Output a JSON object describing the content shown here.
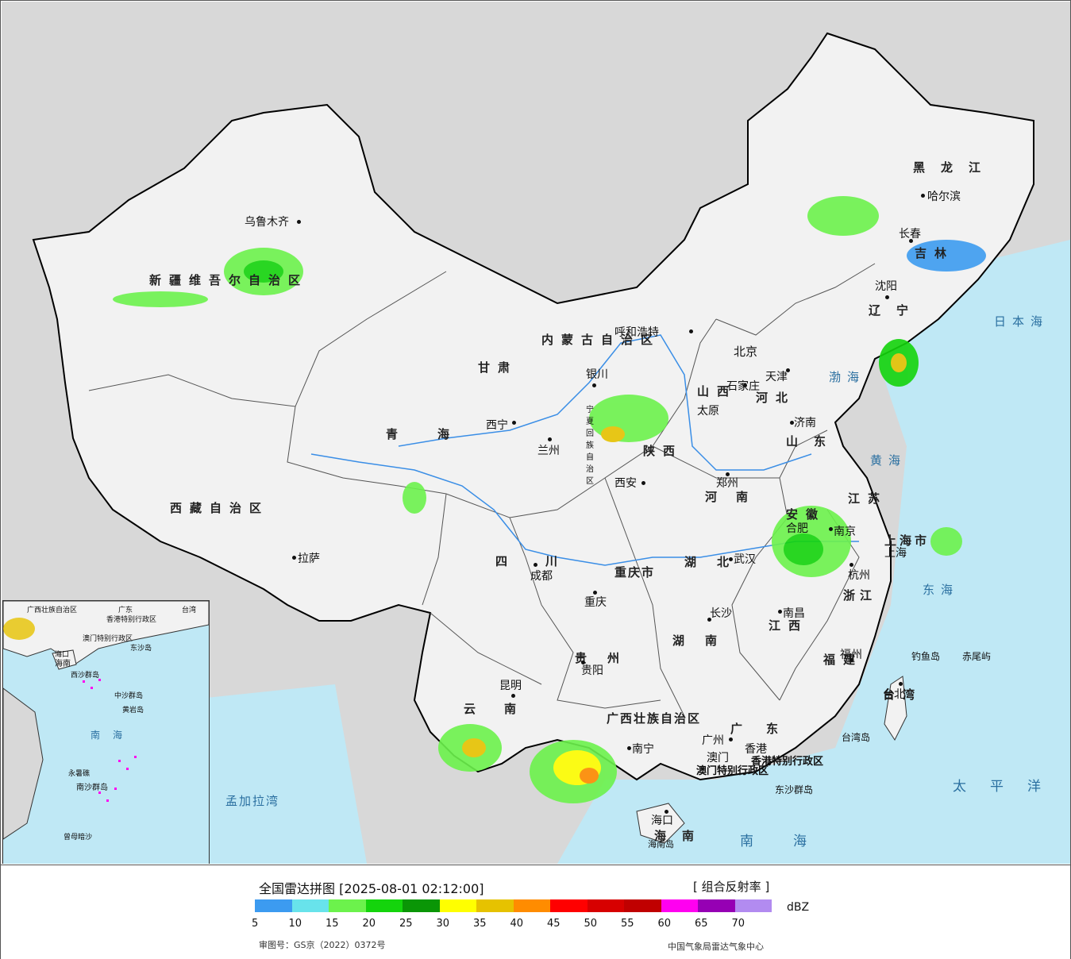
{
  "legend": {
    "title": "全国雷达拼图 [2025-08-01 02:12:00]",
    "product": "[ 组合反射率 ]",
    "unit": "dBZ",
    "ticks": [
      "5",
      "10",
      "15",
      "20",
      "25",
      "30",
      "35",
      "40",
      "45",
      "50",
      "55",
      "60",
      "65",
      "70"
    ],
    "colors": [
      "#3c9bf0",
      "#68e3eb",
      "#6cf24c",
      "#14d40c",
      "#0a9606",
      "#ffff00",
      "#e6c200",
      "#ff8c00",
      "#ff0000",
      "#d70000",
      "#c00000",
      "#ff00f0",
      "#9600b4",
      "#b28bf0"
    ],
    "credit_left": "审图号：GS京（2022）0372号",
    "credit_right": "中国气象局雷达气象中心"
  },
  "regions": [
    {
      "name": "新疆维吾尔自治区"
    },
    {
      "name": "西藏自治区"
    },
    {
      "name": "青海"
    },
    {
      "name": "甘肃"
    },
    {
      "name": "内蒙古自治区"
    },
    {
      "name": "黑龙江"
    },
    {
      "name": "吉林"
    },
    {
      "name": "辽宁"
    },
    {
      "name": "河北"
    },
    {
      "name": "山西"
    },
    {
      "name": "山东"
    },
    {
      "name": "陕西"
    },
    {
      "name": "河南"
    },
    {
      "name": "江苏"
    },
    {
      "name": "安徽"
    },
    {
      "name": "上海市"
    },
    {
      "name": "浙江"
    },
    {
      "name": "四川"
    },
    {
      "name": "重庆市"
    },
    {
      "name": "湖北"
    },
    {
      "name": "湖南"
    },
    {
      "name": "江西"
    },
    {
      "name": "福建"
    },
    {
      "name": "贵州"
    },
    {
      "name": "云南"
    },
    {
      "name": "广西壮族自治区"
    },
    {
      "name": "广东"
    },
    {
      "name": "海南"
    },
    {
      "name": "台湾"
    },
    {
      "name": "宁夏回族自治区"
    },
    {
      "name": "香港特别行政区"
    },
    {
      "name": "澳门特别行政区"
    }
  ],
  "cities": [
    "乌鲁木齐",
    "哈尔滨",
    "长春",
    "沈阳",
    "呼和浩特",
    "北京",
    "天津",
    "石家庄",
    "太原",
    "银川",
    "西宁",
    "兰州",
    "济南",
    "西安",
    "郑州",
    "合肥",
    "南京",
    "上海",
    "杭州",
    "武汉",
    "成都",
    "拉萨",
    "重庆",
    "长沙",
    "南昌",
    "福州",
    "贵阳",
    "昆明",
    "南宁",
    "广州",
    "澳门",
    "香港",
    "台北",
    "海口",
    "台湾岛",
    "钓鱼岛",
    "赤尾屿",
    "东沙群岛",
    "海南岛"
  ],
  "seas": [
    "日本海",
    "渤海",
    "黄海",
    "东海",
    "太平洋",
    "南海",
    "孟加拉湾"
  ],
  "inset_labels": [
    "广西壮族自治区",
    "广东",
    "台湾",
    "香港特别行政区",
    "澳门特别行政区",
    "东沙岛",
    "海口",
    "海南",
    "西沙群岛",
    "中沙群岛",
    "黄岩岛",
    "南海",
    "永暑礁",
    "南沙群岛",
    "曾母暗沙"
  ],
  "colors": {
    "land": "#f2f2f2",
    "sea": "#bfe8f5",
    "foreign": "#d8d8d8",
    "border": "#000000",
    "province": "#555555",
    "river": "#3a8ee6"
  }
}
